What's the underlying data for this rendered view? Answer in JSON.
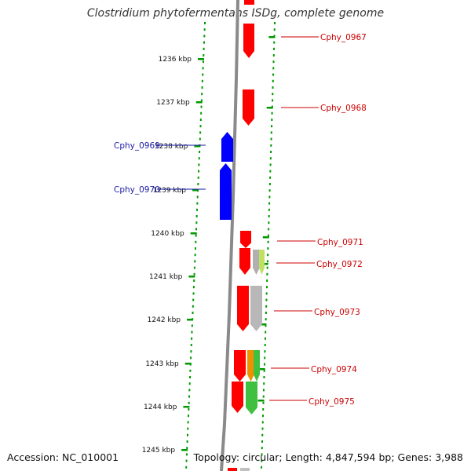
{
  "title": "Clostridium phytofermentans ISDg, complete genome",
  "footer": {
    "accession": "Accession: NC_010001",
    "summary": "Topology: circular; Length: 4,847,594 bp; Genes: 3,988"
  },
  "axis": {
    "unit": "kbp",
    "ticks": [
      "1236 kbp",
      "1237 kbp",
      "1238 kbp",
      "1239 kbp",
      "1240 kbp",
      "1241 kbp",
      "1242 kbp",
      "1243 kbp",
      "1244 kbp",
      "1245 kbp"
    ]
  },
  "colors": {
    "forward_gene": "#ff0000",
    "reverse_gene": "#0000ff",
    "forward_label": "#cc0000",
    "reverse_label": "#1a1aaa",
    "dotted_ring": "#009900",
    "backbone": "#8a8a8a"
  },
  "genes": [
    {
      "label": "Cphy_0967",
      "strand": "forward",
      "color": "#ff0000"
    },
    {
      "label": "Cphy_0968",
      "strand": "forward",
      "color": "#ff0000"
    },
    {
      "label": "Cphy_0969",
      "strand": "reverse",
      "color": "#0000ff"
    },
    {
      "label": "Cphy_0970",
      "strand": "reverse",
      "color": "#0000ff"
    },
    {
      "label": "Cphy_0971",
      "strand": "forward",
      "color": "#ff0000"
    },
    {
      "label": "Cphy_0972",
      "strand": "forward",
      "color": "#ff0000"
    },
    {
      "label": "Cphy_0973",
      "strand": "forward",
      "color": "#ff0000"
    },
    {
      "label": "Cphy_0974",
      "strand": "forward",
      "color": "#ff0000"
    },
    {
      "label": "Cphy_0975",
      "strand": "forward",
      "color": "#ff0000"
    }
  ],
  "features": [
    {
      "color": "#b0b0b0"
    },
    {
      "color": "#bfe060"
    },
    {
      "color": "#b8b8b8"
    },
    {
      "color": "#f09000"
    },
    {
      "color": "#40c040"
    },
    {
      "color": "#40c040"
    }
  ]
}
